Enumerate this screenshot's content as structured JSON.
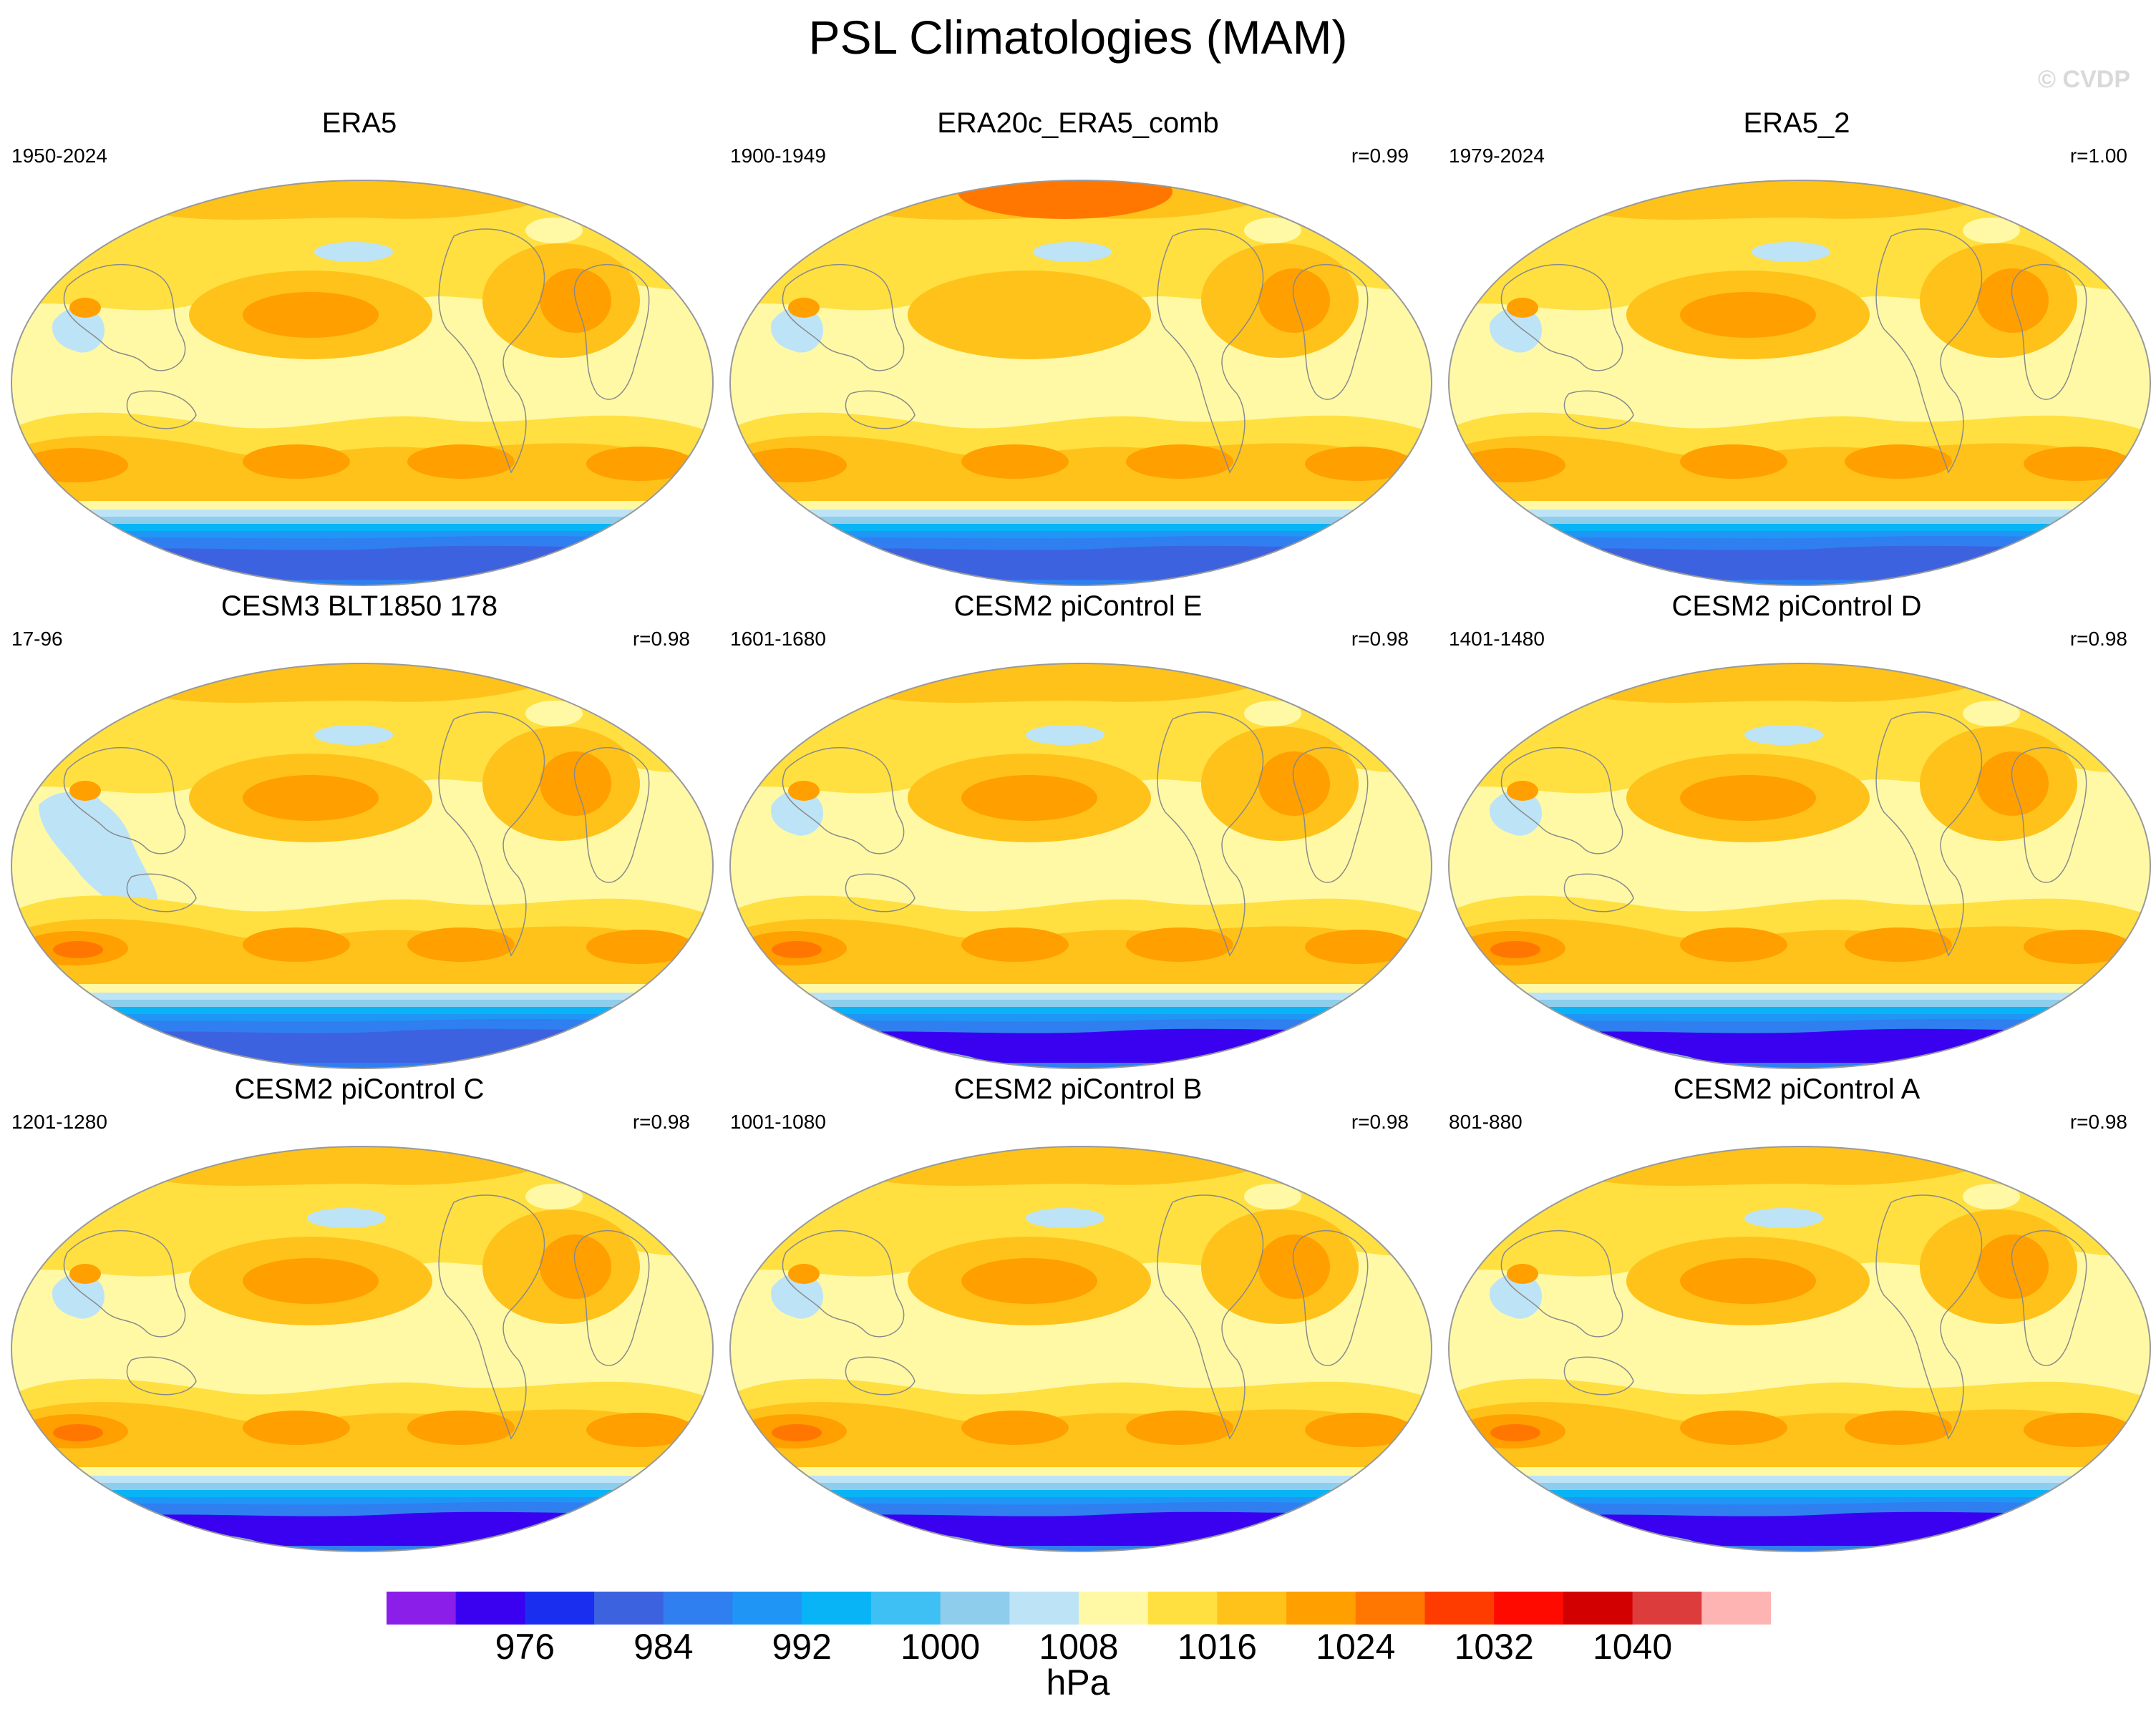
{
  "figure": {
    "title": "PSL Climatologies (MAM)",
    "credit": "© CVDP",
    "units": "hPa"
  },
  "colors": {
    "land_line": "#8a8a8a",
    "map_outline": "#9a9a9a"
  },
  "panels": [
    {
      "title": "ERA5",
      "years": "1950-2024",
      "r": "",
      "variant": "era"
    },
    {
      "title": "ERA20c_ERA5_comb",
      "years": "1900-1949",
      "r": "r=0.99",
      "variant": "era20c"
    },
    {
      "title": "ERA5_2",
      "years": "1979-2024",
      "r": "r=1.00",
      "variant": "era"
    },
    {
      "title": "CESM3 BLT1850 178",
      "years": "17-96",
      "r": "r=0.98",
      "variant": "cesm3"
    },
    {
      "title": "CESM2 piControl E",
      "years": "1601-1680",
      "r": "r=0.98",
      "variant": "cesm2"
    },
    {
      "title": "CESM2 piControl D",
      "years": "1401-1480",
      "r": "r=0.98",
      "variant": "cesm2"
    },
    {
      "title": "CESM2 piControl C",
      "years": "1201-1280",
      "r": "r=0.98",
      "variant": "cesm2"
    },
    {
      "title": "CESM2 piControl B",
      "years": "1001-1080",
      "r": "r=0.98",
      "variant": "cesm2"
    },
    {
      "title": "CESM2 piControl A",
      "years": "801-880",
      "r": "r=0.98",
      "variant": "cesm2"
    }
  ],
  "colorbar": {
    "colors": [
      "#8b1ee8",
      "#3a00f0",
      "#1a2ef0",
      "#3d62e0",
      "#2f7ff0",
      "#1f96f5",
      "#08b4f5",
      "#3fc0f5",
      "#8fcdec",
      "#bde3f7",
      "#fff9a6",
      "#ffe040",
      "#ffc21a",
      "#ff9f00",
      "#ff7700",
      "#ff3c00",
      "#ff0a00",
      "#d20000",
      "#dc3c3c",
      "#ffb4b4"
    ],
    "tick_values": [
      976,
      984,
      992,
      1000,
      1008,
      1016,
      1024,
      1032,
      1040
    ],
    "tick_labels": [
      "976",
      "984",
      "992",
      "1000",
      "1008",
      "1016",
      "1024",
      "1032",
      "1040"
    ],
    "units": "hPa"
  }
}
